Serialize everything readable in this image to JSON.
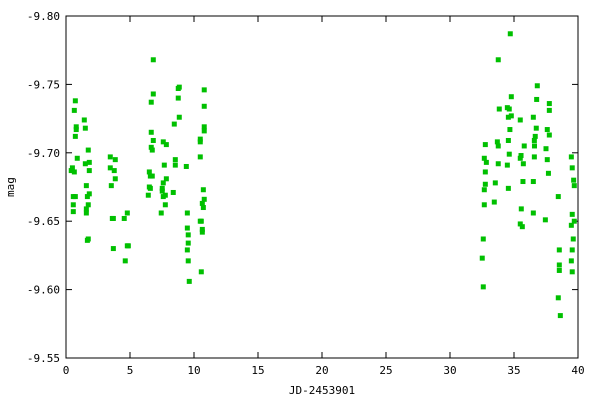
{
  "chart_data": {
    "type": "scatter",
    "title": "",
    "xlabel": "JD-2453901",
    "ylabel": "mag",
    "xlim": [
      0,
      40
    ],
    "ylim": [
      -9.55,
      -9.8
    ],
    "y_inverted": true,
    "grid": false,
    "marker_color": "#00c000",
    "marker": "square",
    "x_ticks": [
      "0",
      "5",
      "10",
      "15",
      "20",
      "25",
      "30",
      "35",
      "40"
    ],
    "y_ticks": [
      "-9.55",
      "-9.60",
      "-9.65",
      "-9.70",
      "-9.75",
      "-9.80"
    ],
    "points": [
      [
        0.73,
        -9.738
      ],
      [
        0.65,
        -9.731
      ],
      [
        0.8,
        -9.719
      ],
      [
        0.8,
        -9.717
      ],
      [
        0.73,
        -9.712
      ],
      [
        0.88,
        -9.696
      ],
      [
        0.5,
        -9.689
      ],
      [
        0.41,
        -9.687
      ],
      [
        0.65,
        -9.686
      ],
      [
        0.57,
        -9.668
      ],
      [
        0.73,
        -9.668
      ],
      [
        0.57,
        -9.662
      ],
      [
        0.57,
        -9.657
      ],
      [
        1.43,
        -9.724
      ],
      [
        1.51,
        -9.718
      ],
      [
        1.74,
        -9.702
      ],
      [
        1.82,
        -9.693
      ],
      [
        1.51,
        -9.692
      ],
      [
        1.82,
        -9.687
      ],
      [
        1.59,
        -9.676
      ],
      [
        1.82,
        -9.67
      ],
      [
        1.67,
        -9.668
      ],
      [
        1.74,
        -9.662
      ],
      [
        1.59,
        -9.659
      ],
      [
        1.59,
        -9.656
      ],
      [
        1.74,
        -9.637
      ],
      [
        1.67,
        -9.636
      ],
      [
        3.46,
        -9.697
      ],
      [
        3.85,
        -9.695
      ],
      [
        3.46,
        -9.689
      ],
      [
        3.77,
        -9.687
      ],
      [
        3.85,
        -9.681
      ],
      [
        3.54,
        -9.676
      ],
      [
        3.62,
        -9.652
      ],
      [
        3.7,
        -9.652
      ],
      [
        4.79,
        -9.656
      ],
      [
        4.55,
        -9.652
      ],
      [
        3.7,
        -9.63
      ],
      [
        4.79,
        -9.632
      ],
      [
        4.87,
        -9.632
      ],
      [
        4.63,
        -9.621
      ],
      [
        6.82,
        -9.768
      ],
      [
        6.82,
        -9.743
      ],
      [
        6.66,
        -9.737
      ],
      [
        6.66,
        -9.715
      ],
      [
        6.82,
        -9.709
      ],
      [
        6.66,
        -9.704
      ],
      [
        6.74,
        -9.702
      ],
      [
        6.51,
        -9.686
      ],
      [
        6.59,
        -9.683
      ],
      [
        6.74,
        -9.683
      ],
      [
        6.51,
        -9.675
      ],
      [
        6.59,
        -9.674
      ],
      [
        6.43,
        -9.669
      ],
      [
        7.6,
        -9.708
      ],
      [
        7.84,
        -9.706
      ],
      [
        7.68,
        -9.691
      ],
      [
        7.84,
        -9.681
      ],
      [
        7.6,
        -9.678
      ],
      [
        7.52,
        -9.674
      ],
      [
        7.52,
        -9.672
      ],
      [
        7.76,
        -9.669
      ],
      [
        7.6,
        -9.668
      ],
      [
        7.76,
        -9.662
      ],
      [
        7.44,
        -9.656
      ],
      [
        8.77,
        -9.747
      ],
      [
        8.85,
        -9.748
      ],
      [
        8.77,
        -9.74
      ],
      [
        8.85,
        -9.726
      ],
      [
        8.46,
        -9.721
      ],
      [
        8.54,
        -9.695
      ],
      [
        8.54,
        -9.691
      ],
      [
        8.38,
        -9.671
      ],
      [
        9.4,
        -9.69
      ],
      [
        9.48,
        -9.656
      ],
      [
        9.48,
        -9.645
      ],
      [
        9.55,
        -9.64
      ],
      [
        9.55,
        -9.634
      ],
      [
        9.48,
        -9.629
      ],
      [
        9.55,
        -9.621
      ],
      [
        9.63,
        -9.606
      ],
      [
        10.8,
        -9.746
      ],
      [
        10.8,
        -9.734
      ],
      [
        10.8,
        -9.719
      ],
      [
        10.8,
        -9.716
      ],
      [
        10.49,
        -9.71
      ],
      [
        10.49,
        -9.708
      ],
      [
        10.49,
        -9.697
      ],
      [
        10.73,
        -9.673
      ],
      [
        10.8,
        -9.666
      ],
      [
        10.65,
        -9.663
      ],
      [
        10.73,
        -9.66
      ],
      [
        10.49,
        -9.65
      ],
      [
        10.57,
        -9.65
      ],
      [
        10.65,
        -9.644
      ],
      [
        10.65,
        -9.642
      ],
      [
        10.57,
        -9.613
      ],
      [
        34.71,
        -9.787
      ],
      [
        33.77,
        -9.768
      ],
      [
        36.82,
        -9.749
      ],
      [
        34.79,
        -9.741
      ],
      [
        36.77,
        -9.739
      ],
      [
        37.76,
        -9.736
      ],
      [
        37.76,
        -9.731
      ],
      [
        33.85,
        -9.732
      ],
      [
        34.48,
        -9.733
      ],
      [
        34.63,
        -9.732
      ],
      [
        34.79,
        -9.727
      ],
      [
        34.56,
        -9.726
      ],
      [
        35.49,
        -9.724
      ],
      [
        36.51,
        -9.726
      ],
      [
        34.68,
        -9.717
      ],
      [
        36.74,
        -9.718
      ],
      [
        36.66,
        -9.712
      ],
      [
        37.6,
        -9.717
      ],
      [
        37.76,
        -9.713
      ],
      [
        36.59,
        -9.709
      ],
      [
        34.56,
        -9.709
      ],
      [
        32.76,
        -9.706
      ],
      [
        33.7,
        -9.708
      ],
      [
        33.77,
        -9.705
      ],
      [
        35.8,
        -9.705
      ],
      [
        36.6,
        -9.705
      ],
      [
        37.5,
        -9.703
      ],
      [
        34.63,
        -9.699
      ],
      [
        35.55,
        -9.698
      ],
      [
        36.59,
        -9.697
      ],
      [
        35.49,
        -9.696
      ],
      [
        37.6,
        -9.695
      ],
      [
        32.68,
        -9.696
      ],
      [
        32.84,
        -9.693
      ],
      [
        33.77,
        -9.692
      ],
      [
        34.48,
        -9.691
      ],
      [
        35.73,
        -9.692
      ],
      [
        32.76,
        -9.686
      ],
      [
        37.69,
        -9.685
      ],
      [
        35.7,
        -9.679
      ],
      [
        36.51,
        -9.679
      ],
      [
        33.54,
        -9.678
      ],
      [
        32.76,
        -9.677
      ],
      [
        32.68,
        -9.673
      ],
      [
        34.56,
        -9.674
      ],
      [
        38.46,
        -9.668
      ],
      [
        32.68,
        -9.662
      ],
      [
        33.46,
        -9.664
      ],
      [
        35.57,
        -9.659
      ],
      [
        36.51,
        -9.656
      ],
      [
        37.45,
        -9.651
      ],
      [
        35.49,
        -9.648
      ],
      [
        35.65,
        -9.646
      ],
      [
        32.6,
        -9.637
      ],
      [
        32.52,
        -9.623
      ],
      [
        32.6,
        -9.602
      ],
      [
        38.54,
        -9.629
      ],
      [
        38.54,
        -9.618
      ],
      [
        38.54,
        -9.614
      ],
      [
        38.46,
        -9.594
      ],
      [
        38.62,
        -9.581
      ],
      [
        39.48,
        -9.697
      ],
      [
        39.55,
        -9.689
      ],
      [
        39.66,
        -9.68
      ],
      [
        39.71,
        -9.676
      ],
      [
        39.55,
        -9.655
      ],
      [
        39.71,
        -9.65
      ],
      [
        39.48,
        -9.647
      ],
      [
        39.63,
        -9.637
      ],
      [
        39.55,
        -9.629
      ],
      [
        39.48,
        -9.621
      ],
      [
        39.55,
        -9.613
      ]
    ]
  }
}
